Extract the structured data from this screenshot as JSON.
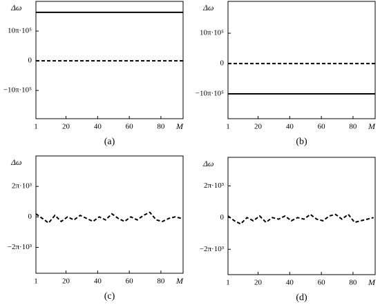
{
  "chart_data": [
    {
      "type": "line",
      "caption": "(a)",
      "ylabel": "Δω",
      "xlabel": "M",
      "x": [
        1,
        94
      ],
      "xlim": [
        1,
        94
      ],
      "xticks": [
        1,
        20,
        40,
        60,
        80
      ],
      "ylim": [
        -19.5,
        20
      ],
      "yticks": [
        {
          "value": 10,
          "label": "10π·10⁵"
        },
        0,
        {
          "value": -10,
          "label": "−10π·10⁵"
        }
      ],
      "series": [
        {
          "color": "#000000",
          "style": "solid",
          "values": [
            16.3,
            16.3
          ]
        },
        {
          "color": "#000000",
          "style": "dashed",
          "values": [
            0,
            0
          ]
        }
      ]
    },
    {
      "type": "line",
      "caption": "(b)",
      "ylabel": "Δω",
      "xlabel": "M",
      "x": [
        1,
        94
      ],
      "xlim": [
        1,
        94
      ],
      "xticks": [
        1,
        20,
        40,
        60,
        80
      ],
      "ylim": [
        -18.2,
        20.5
      ],
      "yticks": [
        {
          "value": 10,
          "label": "10π·10⁵"
        },
        0,
        {
          "value": -10,
          "label": "−10π·10⁵"
        }
      ],
      "series": [
        {
          "color": "#000000",
          "style": "solid",
          "values": [
            -10,
            -10
          ]
        },
        {
          "color": "#000000",
          "style": "dashed",
          "values": [
            0,
            0
          ]
        }
      ]
    },
    {
      "type": "line",
      "caption": "(c)",
      "ylabel": "Δω",
      "xlabel": "M",
      "x": [
        1,
        5,
        9,
        13,
        17,
        21,
        25,
        29,
        33,
        37,
        41,
        45,
        49,
        53,
        57,
        61,
        65,
        69,
        73,
        77,
        81,
        85,
        89,
        93
      ],
      "xlim": [
        1,
        94
      ],
      "xticks": [
        1,
        20,
        40,
        60,
        80
      ],
      "ylim": [
        -3.7,
        4
      ],
      "yticks": [
        {
          "value": 2,
          "label": "2π·10³"
        },
        0,
        {
          "value": -2,
          "label": "−2π·10³"
        }
      ],
      "series": [
        {
          "color": "#000000",
          "style": "dashed",
          "values": [
            0.2,
            -0.1,
            -0.4,
            0.1,
            -0.3,
            0.0,
            -0.2,
            0.1,
            -0.1,
            -0.3,
            0.0,
            -0.2,
            0.2,
            -0.1,
            -0.3,
            0.0,
            -0.2,
            0.1,
            0.3,
            -0.2,
            -0.3,
            -0.1,
            0.0,
            -0.1
          ]
        }
      ]
    },
    {
      "type": "line",
      "caption": "(d)",
      "ylabel": "Δω",
      "xlabel": "M",
      "x": [
        1,
        5,
        9,
        13,
        17,
        21,
        25,
        29,
        33,
        37,
        41,
        45,
        49,
        53,
        57,
        61,
        65,
        69,
        73,
        77,
        81,
        85,
        89,
        93
      ],
      "xlim": [
        1,
        94
      ],
      "xticks": [
        1,
        20,
        40,
        60,
        80
      ],
      "ylim": [
        -3.6,
        3.8
      ],
      "yticks": [
        {
          "value": 2,
          "label": "2π·10³"
        },
        0,
        {
          "value": -2,
          "label": "−2π·10³"
        }
      ],
      "series": [
        {
          "color": "#000000",
          "style": "dashed",
          "values": [
            0.1,
            -0.2,
            -0.4,
            0.0,
            -0.2,
            0.1,
            -0.3,
            0.0,
            -0.1,
            0.1,
            -0.2,
            0.0,
            -0.1,
            0.2,
            -0.1,
            -0.2,
            0.1,
            0.2,
            -0.1,
            0.2,
            -0.3,
            -0.2,
            -0.1,
            0.0
          ]
        }
      ]
    }
  ]
}
